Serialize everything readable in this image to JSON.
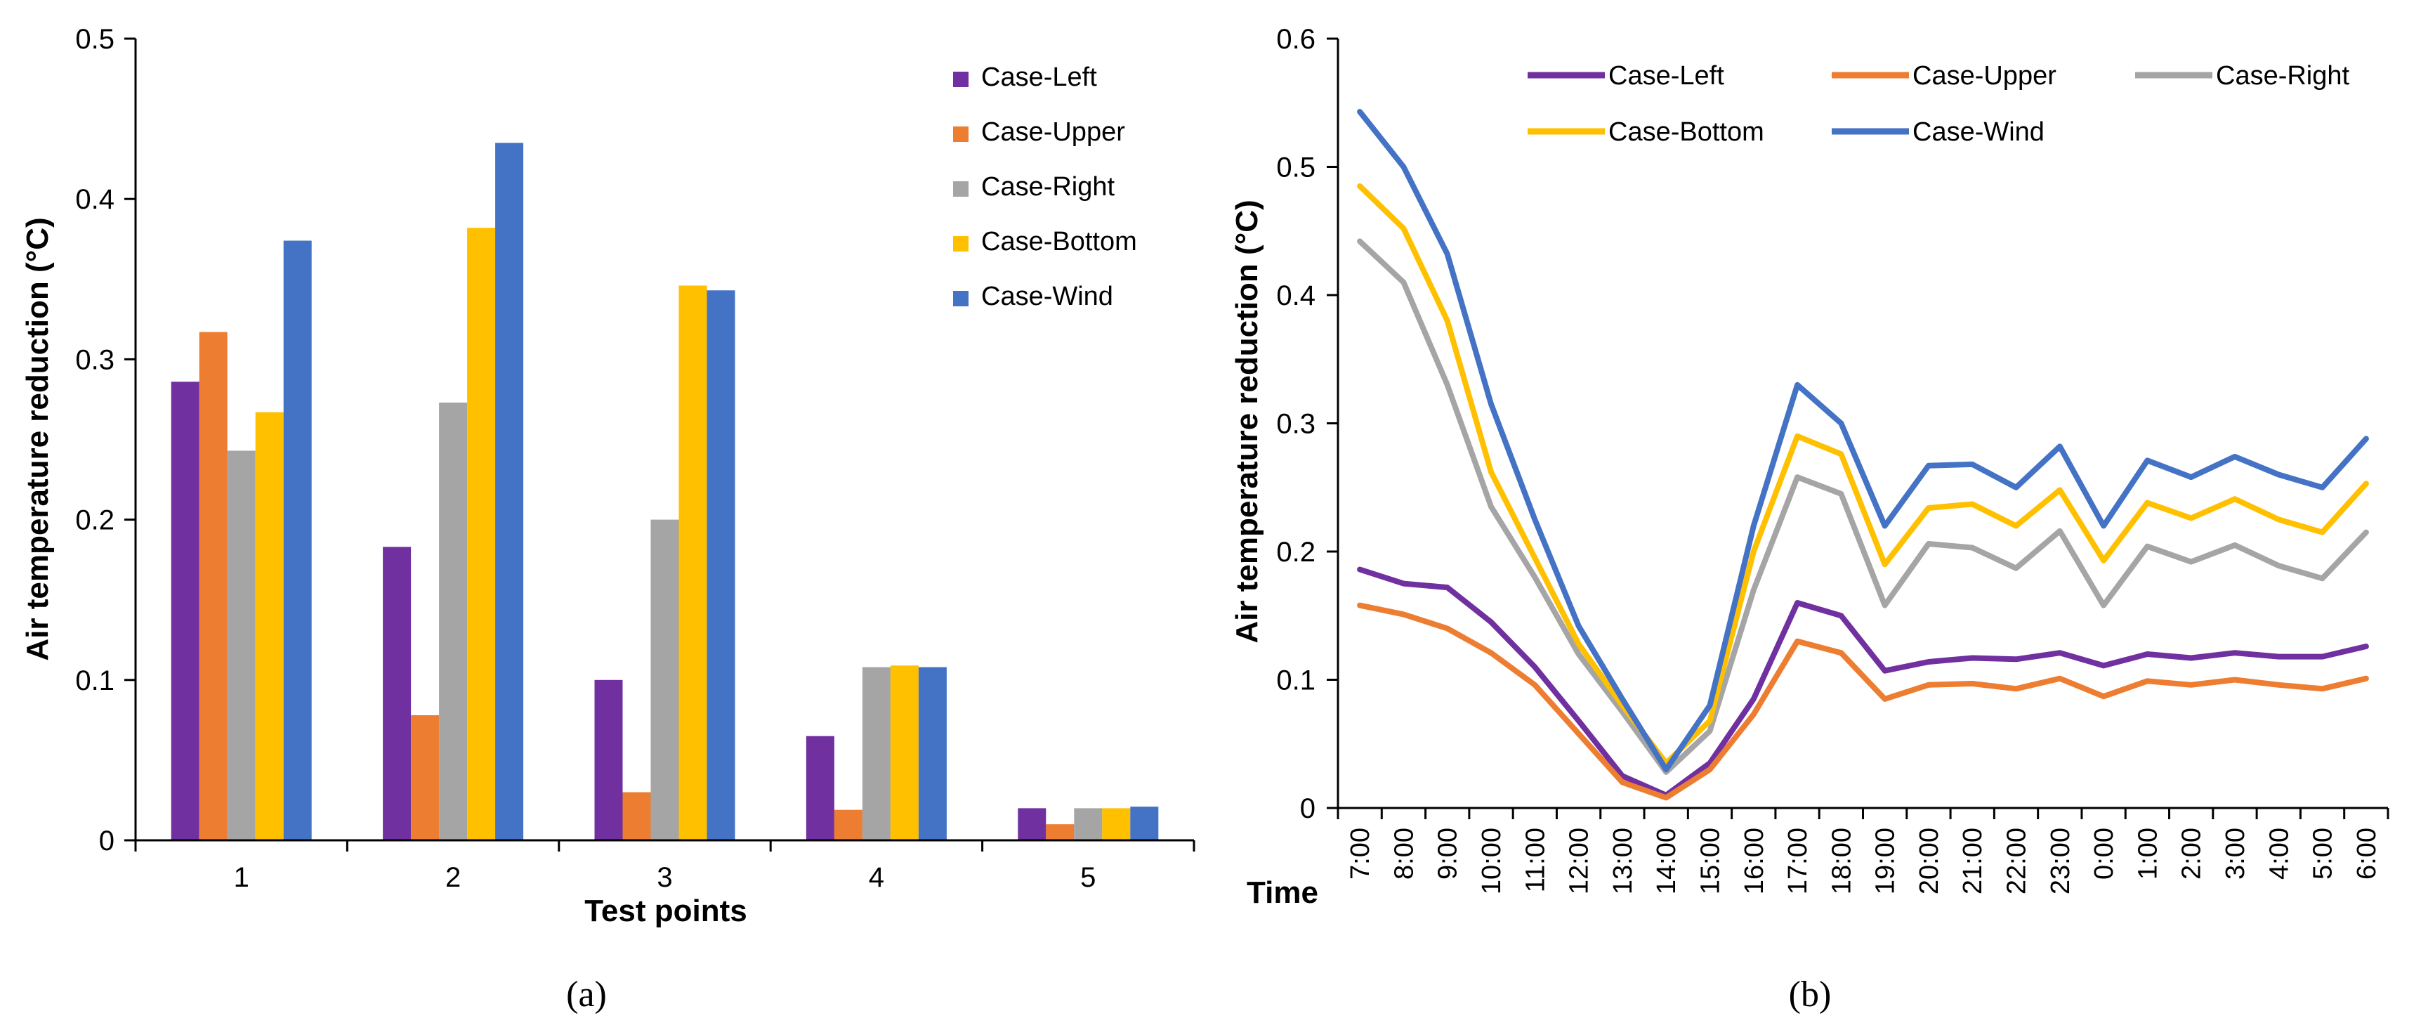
{
  "chart_data": [
    {
      "panel": "(a)",
      "type": "bar",
      "title": "",
      "xlabel": "Test points",
      "ylabel": "Air temperature reduction (°C)",
      "ylim": [
        0,
        0.5
      ],
      "yticks": [
        "0",
        "0.1",
        "0.2",
        "0.3",
        "0.4",
        "0.5"
      ],
      "categories": [
        "1",
        "2",
        "3",
        "4",
        "5"
      ],
      "legend_position": "top-right",
      "grid": false,
      "series": [
        {
          "name": "Case-Left",
          "color": "#7030A0",
          "values": [
            0.286,
            0.183,
            0.1,
            0.065,
            0.02
          ]
        },
        {
          "name": "Case-Upper",
          "color": "#ED7D31",
          "values": [
            0.317,
            0.078,
            0.03,
            0.019,
            0.01
          ]
        },
        {
          "name": "Case-Right",
          "color": "#A5A5A5",
          "values": [
            0.243,
            0.273,
            0.2,
            0.108,
            0.02
          ]
        },
        {
          "name": "Case-Bottom",
          "color": "#FFC000",
          "values": [
            0.267,
            0.382,
            0.346,
            0.109,
            0.02
          ]
        },
        {
          "name": "Case-Wind",
          "color": "#4472C4",
          "values": [
            0.374,
            0.435,
            0.343,
            0.108,
            0.021
          ]
        }
      ]
    },
    {
      "panel": "(b)",
      "type": "line",
      "title": "",
      "xlabel": "Time",
      "ylabel": "Air temperature reduction (°C)",
      "ylim": [
        0,
        0.6
      ],
      "yticks": [
        "0",
        "0.1",
        "0.2",
        "0.3",
        "0.4",
        "0.5",
        "0.6"
      ],
      "categories": [
        "7:00",
        "8:00",
        "9:00",
        "10:00",
        "11:00",
        "12:00",
        "13:00",
        "14:00",
        "15:00",
        "16:00",
        "17:00",
        "18:00",
        "19:00",
        "20:00",
        "21:00",
        "22:00",
        "23:00",
        "0:00",
        "1:00",
        "2:00",
        "3:00",
        "4:00",
        "5:00",
        "6:00"
      ],
      "legend_position": "top",
      "grid": false,
      "series": [
        {
          "name": "Case-Left",
          "color": "#7030A0",
          "values": [
            0.186,
            0.175,
            0.172,
            0.145,
            0.11,
            0.068,
            0.025,
            0.01,
            0.035,
            0.085,
            0.16,
            0.15,
            0.107,
            0.114,
            0.117,
            0.116,
            0.121,
            0.111,
            0.12,
            0.117,
            0.121,
            0.118,
            0.118,
            0.126
          ]
        },
        {
          "name": "Case-Upper",
          "color": "#ED7D31",
          "values": [
            0.158,
            0.151,
            0.14,
            0.121,
            0.096,
            0.058,
            0.02,
            0.008,
            0.03,
            0.073,
            0.13,
            0.121,
            0.085,
            0.096,
            0.097,
            0.093,
            0.101,
            0.087,
            0.099,
            0.096,
            0.1,
            0.096,
            0.093,
            0.101
          ]
        },
        {
          "name": "Case-Right",
          "color": "#A5A5A5",
          "values": [
            0.442,
            0.41,
            0.33,
            0.235,
            0.18,
            0.12,
            0.075,
            0.028,
            0.06,
            0.17,
            0.258,
            0.245,
            0.158,
            0.206,
            0.203,
            0.187,
            0.216,
            0.158,
            0.204,
            0.192,
            0.205,
            0.189,
            0.179,
            0.215
          ]
        },
        {
          "name": "Case-Bottom",
          "color": "#FFC000",
          "values": [
            0.485,
            0.452,
            0.38,
            0.262,
            0.195,
            0.128,
            0.08,
            0.035,
            0.068,
            0.2,
            0.29,
            0.276,
            0.19,
            0.234,
            0.237,
            0.22,
            0.248,
            0.193,
            0.238,
            0.226,
            0.241,
            0.225,
            0.215,
            0.253
          ]
        },
        {
          "name": "Case-Wind",
          "color": "#4472C4",
          "values": [
            0.543,
            0.5,
            0.432,
            0.315,
            0.225,
            0.142,
            0.085,
            0.03,
            0.08,
            0.22,
            0.33,
            0.3,
            0.22,
            0.267,
            0.268,
            0.25,
            0.282,
            0.22,
            0.271,
            0.258,
            0.274,
            0.26,
            0.25,
            0.288
          ]
        }
      ]
    }
  ],
  "captions": {
    "a": "(a)",
    "b": "(b)"
  },
  "colors": {
    "axis": "#000000",
    "background": "#ffffff"
  }
}
